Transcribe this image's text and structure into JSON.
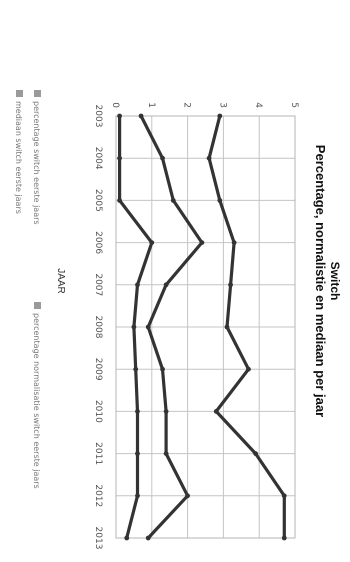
{
  "chart_data": {
    "type": "line",
    "title": "Switch",
    "subtitle": "Percentage, normalistie en mediaan per jaar",
    "xlabel": "JAAR",
    "ylabel": "",
    "categories": [
      "2003",
      "2004",
      "2005",
      "2006",
      "2007",
      "2008",
      "2009",
      "2010",
      "2011",
      "2012",
      "2013"
    ],
    "ylim": [
      0,
      5
    ],
    "yticks": [
      0,
      1,
      2,
      3,
      4,
      5
    ],
    "grid": true,
    "legend_position": "bottom",
    "series": [
      {
        "name": "percentage switch eerste jaars",
        "color": "#333333",
        "values": [
          0.7,
          1.3,
          1.6,
          2.4,
          1.4,
          0.9,
          1.3,
          1.4,
          1.4,
          2.0,
          0.9
        ]
      },
      {
        "name": "percentage normalisatie switch eerste jaars",
        "color": "#333333",
        "values": [
          2.9,
          2.6,
          2.9,
          3.3,
          3.2,
          3.1,
          3.7,
          2.8,
          3.9,
          4.7,
          4.7
        ]
      },
      {
        "name": "mediaan switch eerste jaars",
        "color": "#333333",
        "values": [
          0.1,
          0.1,
          0.1,
          1.0,
          0.6,
          0.5,
          0.55,
          0.6,
          0.6,
          0.6,
          0.3
        ]
      }
    ]
  }
}
